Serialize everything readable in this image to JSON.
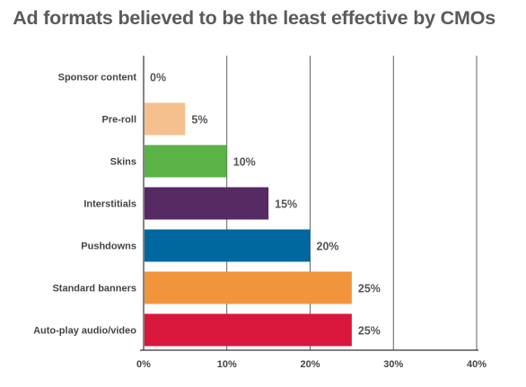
{
  "chart_data": {
    "type": "bar",
    "orientation": "horizontal",
    "title": "Ad formats believed to be the least effective by CMOs",
    "categories": [
      "Sponsor content",
      "Pre-roll",
      "Skins",
      "Interstitials",
      "Pushdowns",
      "Standard banners",
      "Auto-play audio/video"
    ],
    "values": [
      0,
      5,
      10,
      15,
      20,
      25,
      25
    ],
    "value_labels": [
      "0%",
      "5%",
      "10%",
      "15%",
      "20%",
      "25%",
      "25%"
    ],
    "colors": [
      "#f6c08e",
      "#f6c08e",
      "#5bb246",
      "#562a63",
      "#00689f",
      "#f0953c",
      "#d9163c"
    ],
    "xlim": [
      0,
      40
    ],
    "x_ticks": [
      0,
      10,
      20,
      30,
      40
    ],
    "x_tick_labels": [
      "0%",
      "10%",
      "20%",
      "30%",
      "40%"
    ],
    "grid": true,
    "legend": "none"
  }
}
